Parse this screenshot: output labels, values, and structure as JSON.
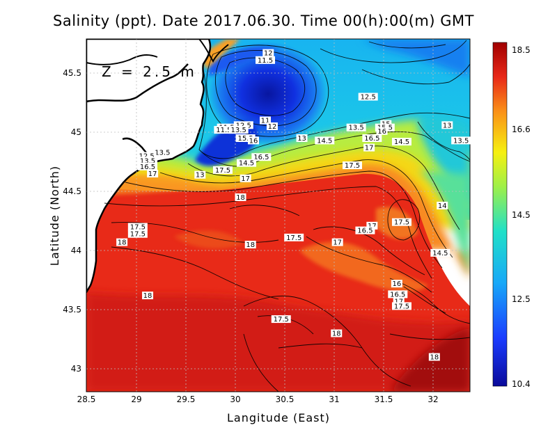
{
  "title": "Salinity (ppt). Date 2017.06.30. Time 00(h):00(m) GMT",
  "depth_label": "Z = 2.5 m",
  "x_axis_title": "Langitude (East)",
  "y_axis_title": "Latitude (North)",
  "x_ticks": [
    "28.5",
    "29",
    "29.5",
    "30",
    "30.5",
    "31",
    "31.5",
    "32"
  ],
  "y_ticks": [
    "45.5",
    "45",
    "44.5",
    "44",
    "43.5",
    "43"
  ],
  "colorbar_ticks": [
    "18.5",
    "16.6",
    "14.5",
    "12.5",
    "10.4"
  ],
  "colors": {
    "land": "#ffffff",
    "coast": "#000000",
    "grid": "#bbbbbb",
    "high": "#a00000",
    "low": "#0000a0"
  },
  "contour_labels": [
    {
      "t": "12",
      "lon": 30.34,
      "lat": 45.67
    },
    {
      "t": "11.5",
      "lon": 30.31,
      "lat": 45.61
    },
    {
      "t": "12.5",
      "lon": 31.35,
      "lat": 45.3
    },
    {
      "t": "11",
      "lon": 30.31,
      "lat": 45.1
    },
    {
      "t": "12",
      "lon": 30.38,
      "lat": 45.05
    },
    {
      "t": "13",
      "lon": 32.15,
      "lat": 45.06
    },
    {
      "t": "11.5",
      "lon": 29.92,
      "lat": 45.04
    },
    {
      "t": "12.5",
      "lon": 30.09,
      "lat": 45.06
    },
    {
      "t": "11.5",
      "lon": 29.89,
      "lat": 45.02
    },
    {
      "t": "13.5",
      "lon": 30.04,
      "lat": 45.02
    },
    {
      "t": "13.5",
      "lon": 31.23,
      "lat": 45.04
    },
    {
      "t": "15",
      "lon": 31.53,
      "lat": 45.07
    },
    {
      "t": "15.5",
      "lon": 31.52,
      "lat": 45.04
    },
    {
      "t": "16",
      "lon": 31.49,
      "lat": 45.01
    },
    {
      "t": "13",
      "lon": 30.68,
      "lat": 44.95
    },
    {
      "t": "14.5",
      "lon": 30.91,
      "lat": 44.93
    },
    {
      "t": "16.5",
      "lon": 31.39,
      "lat": 44.95
    },
    {
      "t": "14.5",
      "lon": 31.69,
      "lat": 44.92
    },
    {
      "t": "13.5",
      "lon": 32.29,
      "lat": 44.93
    },
    {
      "t": "15.5",
      "lon": 30.11,
      "lat": 44.95
    },
    {
      "t": "16",
      "lon": 30.19,
      "lat": 44.93
    },
    {
      "t": "17",
      "lon": 31.36,
      "lat": 44.87
    },
    {
      "t": "13.5",
      "lon": 29.27,
      "lat": 44.83
    },
    {
      "t": "12.5",
      "lon": 29.11,
      "lat": 44.8
    },
    {
      "t": "13.5",
      "lon": 29.12,
      "lat": 44.76
    },
    {
      "t": "16.5",
      "lon": 30.27,
      "lat": 44.79
    },
    {
      "t": "14.5",
      "lon": 30.12,
      "lat": 44.74
    },
    {
      "t": "16.5",
      "lon": 29.12,
      "lat": 44.71
    },
    {
      "t": "17.5",
      "lon": 29.88,
      "lat": 44.68
    },
    {
      "t": "17.5",
      "lon": 31.19,
      "lat": 44.72
    },
    {
      "t": "17",
      "lon": 29.17,
      "lat": 44.65
    },
    {
      "t": "13",
      "lon": 29.65,
      "lat": 44.64
    },
    {
      "t": "17",
      "lon": 30.11,
      "lat": 44.61
    },
    {
      "t": "18",
      "lon": 30.06,
      "lat": 44.45
    },
    {
      "t": "14",
      "lon": 32.1,
      "lat": 44.38
    },
    {
      "t": "17.5",
      "lon": 29.02,
      "lat": 44.2
    },
    {
      "t": "17.5",
      "lon": 31.69,
      "lat": 44.24
    },
    {
      "t": "17",
      "lon": 31.39,
      "lat": 44.21
    },
    {
      "t": "16.5",
      "lon": 31.32,
      "lat": 44.17
    },
    {
      "t": "17.5",
      "lon": 29.02,
      "lat": 44.14
    },
    {
      "t": "17.5",
      "lon": 30.6,
      "lat": 44.11
    },
    {
      "t": "18",
      "lon": 28.86,
      "lat": 44.07
    },
    {
      "t": "18",
      "lon": 30.16,
      "lat": 44.05
    },
    {
      "t": "17",
      "lon": 31.04,
      "lat": 44.07
    },
    {
      "t": "14.5",
      "lon": 32.08,
      "lat": 43.98
    },
    {
      "t": "16",
      "lon": 31.64,
      "lat": 43.72
    },
    {
      "t": "18",
      "lon": 29.12,
      "lat": 43.62
    },
    {
      "t": "16.5",
      "lon": 31.65,
      "lat": 43.63
    },
    {
      "t": "17",
      "lon": 31.66,
      "lat": 43.57
    },
    {
      "t": "17.5",
      "lon": 31.69,
      "lat": 43.53
    },
    {
      "t": "17.5",
      "lon": 30.47,
      "lat": 43.42
    },
    {
      "t": "18",
      "lon": 31.03,
      "lat": 43.3
    },
    {
      "t": "18",
      "lon": 32.02,
      "lat": 43.1
    }
  ]
}
